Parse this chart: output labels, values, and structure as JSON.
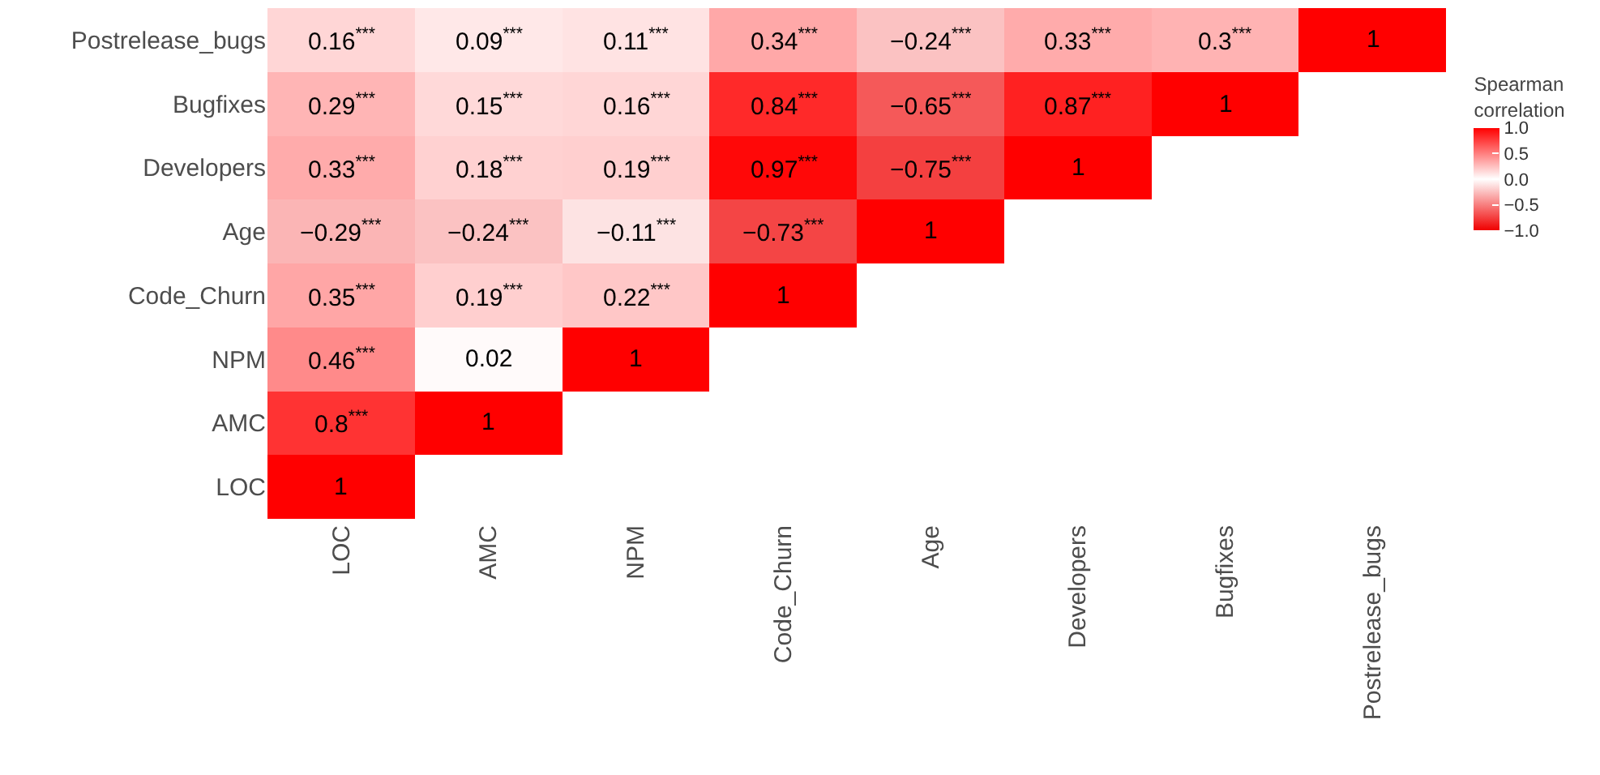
{
  "chart_data": {
    "type": "heatmap",
    "clabel": "Spearman\ncorrelation",
    "categories": [
      "LOC",
      "AMC",
      "NPM",
      "Code_Churn",
      "Age",
      "Developers",
      "Bugfixes",
      "Postrelease_bugs"
    ],
    "y_categories": [
      "Postrelease_bugs",
      "Bugfixes",
      "Developers",
      "Age",
      "Code_Churn",
      "NPM",
      "AMC",
      "LOC"
    ],
    "cells": [
      [
        0.16,
        0.09,
        0.11,
        0.34,
        -0.24,
        0.33,
        0.3,
        1
      ],
      [
        0.29,
        0.15,
        0.16,
        0.84,
        -0.65,
        0.87,
        1,
        null
      ],
      [
        0.33,
        0.18,
        0.19,
        0.97,
        -0.75,
        1,
        null,
        null
      ],
      [
        -0.29,
        -0.24,
        -0.11,
        -0.73,
        1,
        null,
        null,
        null
      ],
      [
        0.35,
        0.19,
        0.22,
        1,
        null,
        null,
        null,
        null
      ],
      [
        0.46,
        0.02,
        1,
        null,
        null,
        null,
        null,
        null
      ],
      [
        0.8,
        1,
        null,
        null,
        null,
        null,
        null,
        null
      ],
      [
        1,
        null,
        null,
        null,
        null,
        null,
        null,
        null
      ]
    ],
    "cell_labels": [
      [
        "0.16$^{***}$",
        "0.09$^{***}$",
        "0.11$^{***}$",
        "0.34$^{***}$",
        "−0.24$^{***}$",
        "0.33$^{***}$",
        "0.3$^{***}$",
        "1"
      ],
      [
        "0.29$^{***}$",
        "0.15$^{***}$",
        "0.16$^{***}$",
        "0.84$^{***}$",
        "−0.65$^{***}$",
        "0.87$^{***}$",
        "1",
        null
      ],
      [
        "0.33$^{***}$",
        "0.18$^{***}$",
        "0.19$^{***}$",
        "0.97$^{***}$",
        "−0.75$^{***}$",
        "1",
        null,
        null
      ],
      [
        "−0.29$^{***}$",
        "−0.24$^{***}$",
        "−0.11$^{***}$",
        "−0.73$^{***}$",
        "1",
        null,
        null,
        null
      ],
      [
        "0.35$^{***}$",
        "0.19$^{***}$",
        "0.22$^{***}$",
        "1",
        null,
        null,
        null,
        null
      ],
      [
        "0.46$^{***}$",
        "0.02",
        "1",
        null,
        null,
        null,
        null,
        null
      ],
      [
        "0.8$^{***}$",
        "1",
        null,
        null,
        null,
        null,
        null,
        null
      ],
      [
        "1",
        null,
        null,
        null,
        null,
        null,
        null,
        null
      ]
    ],
    "clim": [
      -1,
      1
    ],
    "cticks": [
      {
        "value": 1,
        "label": "1.0"
      },
      {
        "value": 0.5,
        "label": "0.5"
      },
      {
        "value": 0,
        "label": "0.0"
      },
      {
        "value": -0.5,
        "label": "−0.5"
      },
      {
        "value": -1,
        "label": "−1.0"
      }
    ]
  }
}
